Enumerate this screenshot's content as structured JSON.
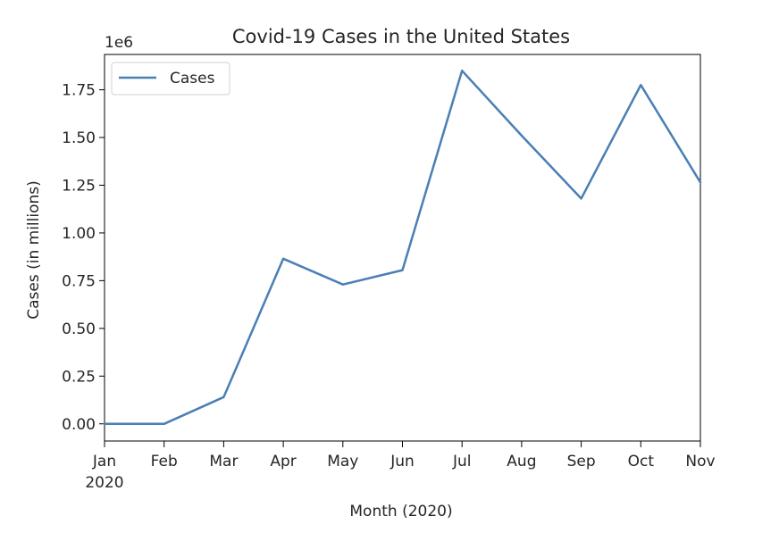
{
  "chart_data": {
    "type": "line",
    "title": "Covid-19 Cases in the United States",
    "xlabel": "Month (2020)",
    "ylabel": "Cases (in millions)",
    "y_offset_label": "1e6",
    "categories": [
      "Jan",
      "Feb",
      "Mar",
      "Apr",
      "May",
      "Jun",
      "Jul",
      "Aug",
      "Sep",
      "Oct",
      "Nov"
    ],
    "first_tick_year": "2020",
    "yticks": [
      "0.00",
      "0.25",
      "0.50",
      "0.75",
      "1.00",
      "1.25",
      "1.50",
      "1.75"
    ],
    "ytick_values": [
      0,
      0.25,
      0.5,
      0.75,
      1.0,
      1.25,
      1.5,
      1.75
    ],
    "ylim": [
      -0.09,
      1.935
    ],
    "grid": false,
    "legend_position": "upper-left",
    "series": [
      {
        "name": "Cases",
        "color": "#4a7fb5",
        "values": [
          0.0,
          0.0,
          0.14,
          0.865,
          0.73,
          0.805,
          1.85,
          1.51,
          1.18,
          1.775,
          1.265
        ]
      }
    ]
  }
}
